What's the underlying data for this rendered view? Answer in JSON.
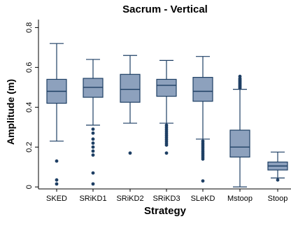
{
  "chart_data": {
    "type": "box",
    "title": "Sacrum - Vertical",
    "xlabel": "Strategy",
    "ylabel": "Amplitude (m)",
    "ylim": [
      -0.01,
      0.84
    ],
    "yticks": [
      0,
      0.2,
      0.4,
      0.6,
      0.8
    ],
    "ytick_labels": [
      "0",
      "0.2",
      "0.4",
      "0.6",
      "0.8"
    ],
    "grid": false,
    "box_color": "#8da1bd",
    "line_color": "#1e3f64",
    "outlier_color": "#1e3f64",
    "categories": [
      "SKED",
      "SRiKD1",
      "SRiKD2",
      "SRiKD3",
      "SLeKD",
      "Mstoop",
      "Stoop"
    ],
    "boxes": [
      {
        "whisker_low": 0.23,
        "q1": 0.42,
        "median": 0.48,
        "q3": 0.54,
        "whisker_high": 0.72,
        "outliers": [
          0.13,
          0.035,
          0.015
        ]
      },
      {
        "whisker_low": 0.31,
        "q1": 0.45,
        "median": 0.5,
        "q3": 0.545,
        "whisker_high": 0.64,
        "outliers": [
          0.29,
          0.27,
          0.24,
          0.22,
          0.2,
          0.18,
          0.16,
          0.07,
          0.015
        ]
      },
      {
        "whisker_low": 0.32,
        "q1": 0.425,
        "median": 0.49,
        "q3": 0.565,
        "whisker_high": 0.66,
        "outliers": [
          0.17
        ]
      },
      {
        "whisker_low": 0.32,
        "q1": 0.455,
        "median": 0.51,
        "q3": 0.54,
        "whisker_high": 0.635,
        "outliers": [
          0.31,
          0.3,
          0.29,
          0.28,
          0.27,
          0.26,
          0.25,
          0.24,
          0.23,
          0.22,
          0.21,
          0.17
        ]
      },
      {
        "whisker_low": 0.24,
        "q1": 0.43,
        "median": 0.48,
        "q3": 0.55,
        "whisker_high": 0.655,
        "outliers": [
          0.23,
          0.22,
          0.21,
          0.2,
          0.19,
          0.18,
          0.17,
          0.16,
          0.15,
          0.14,
          0.03
        ]
      },
      {
        "whisker_low": 0.0,
        "q1": 0.15,
        "median": 0.2,
        "q3": 0.285,
        "whisker_high": 0.49,
        "outliers": [
          0.495,
          0.5,
          0.505,
          0.51,
          0.515,
          0.52,
          0.525,
          0.53,
          0.535,
          0.54,
          0.545,
          0.555
        ]
      },
      {
        "whisker_low": 0.045,
        "q1": 0.085,
        "median": 0.105,
        "q3": 0.125,
        "whisker_high": 0.175,
        "outliers": [
          0.035
        ]
      }
    ]
  }
}
